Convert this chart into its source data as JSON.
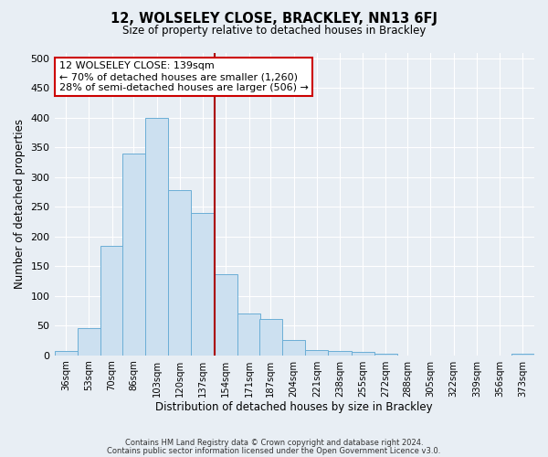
{
  "title": "12, WOLSELEY CLOSE, BRACKLEY, NN13 6FJ",
  "subtitle": "Size of property relative to detached houses in Brackley",
  "xlabel": "Distribution of detached houses by size in Brackley",
  "ylabel": "Number of detached properties",
  "bar_labels": [
    "36sqm",
    "53sqm",
    "70sqm",
    "86sqm",
    "103sqm",
    "120sqm",
    "137sqm",
    "154sqm",
    "171sqm",
    "187sqm",
    "204sqm",
    "221sqm",
    "238sqm",
    "255sqm",
    "272sqm",
    "288sqm",
    "305sqm",
    "322sqm",
    "339sqm",
    "356sqm",
    "373sqm"
  ],
  "label_vals": [
    36,
    53,
    70,
    86,
    103,
    120,
    137,
    154,
    171,
    187,
    204,
    221,
    238,
    255,
    272,
    288,
    305,
    322,
    339,
    356,
    373
  ],
  "bar_values": [
    8,
    46,
    184,
    340,
    400,
    279,
    240,
    136,
    70,
    61,
    25,
    9,
    8,
    5,
    3,
    0,
    0,
    0,
    0,
    0,
    3
  ],
  "bar_color": "#cce0f0",
  "bar_edgecolor": "#6baed6",
  "ylim": [
    0,
    510
  ],
  "yticks": [
    0,
    50,
    100,
    150,
    200,
    250,
    300,
    350,
    400,
    450,
    500
  ],
  "property_line_x": 137,
  "property_line_color": "#aa0000",
  "annotation_title": "12 WOLSELEY CLOSE: 139sqm",
  "annotation_line1": "← 70% of detached houses are smaller (1,260)",
  "annotation_line2": "28% of semi-detached houses are larger (506) →",
  "footnote1": "Contains HM Land Registry data © Crown copyright and database right 2024.",
  "footnote2": "Contains public sector information licensed under the Open Government Licence v3.0.",
  "bg_color": "#e8eef4",
  "grid_color": "#ffffff",
  "bin_width": 17
}
